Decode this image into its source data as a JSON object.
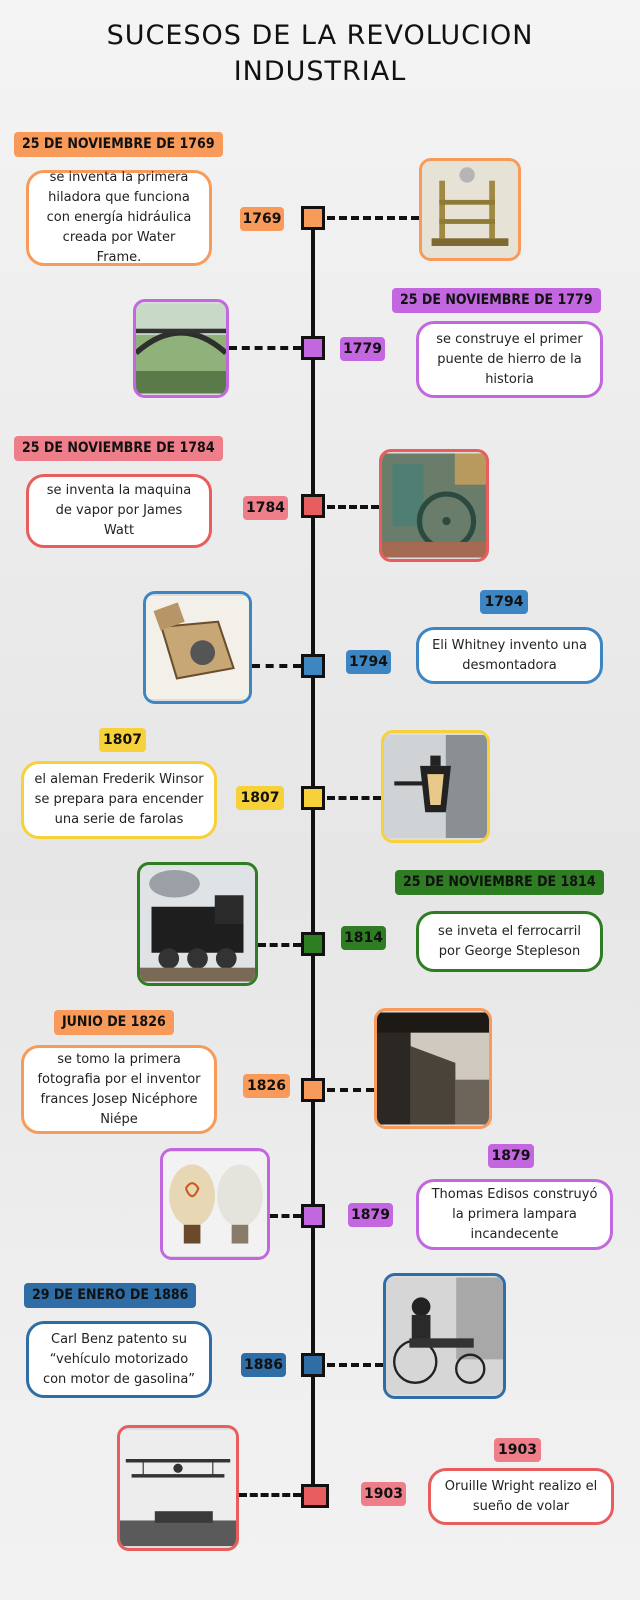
{
  "title": {
    "line1": "SUCESOS DE LA REVOLUCION",
    "line2": "INDUSTRIAL"
  },
  "colors": {
    "orange": "#f79a5a",
    "purple": "#c267e0",
    "red": "#e85d5d",
    "pink": "#ee7f8a",
    "blue": "#3d86c2",
    "yellow": "#f7d13a",
    "green": "#2e7d22",
    "navy": "#2f6da6"
  },
  "events": [
    {
      "year": "1769",
      "heading": "25 DE NOVIEMBRE DE 1769",
      "text": "se inventa la primera hiladora que funciona con energía hidráulica creada por Water Frame.",
      "icon": "water-frame-image"
    },
    {
      "year": "1779",
      "heading": "25 DE  NOVIEMBRE DE 1779",
      "text": "se construye el primer puente de hierro de la historia",
      "icon": "iron-bridge-image"
    },
    {
      "year": "1784",
      "heading": "25 DE NOVIEMBRE DE 1784",
      "text": "se inventa la maquina de vapor por James Watt",
      "icon": "steam-engine-image"
    },
    {
      "year": "1794",
      "heading": "1794",
      "text": "Eli Whitney invento una desmontadora",
      "icon": "cotton-gin-image"
    },
    {
      "year": "1807",
      "heading": "1807",
      "text": "el aleman Frederik Winsor se prepara para encender una serie de farolas",
      "icon": "street-lamp-image"
    },
    {
      "year": "1814",
      "heading": "25 DE NOVIEMBRE DE 1814",
      "text": "se inveta el ferrocarril por George Stepleson",
      "icon": "locomotive-image"
    },
    {
      "year": "1826",
      "heading": "JUNIO DE 1826",
      "text": "se tomo la primera fotografia por el inventor frances Josep Nicéphore Niépe",
      "icon": "first-photograph-image"
    },
    {
      "year": "1879",
      "heading": "1879",
      "text": "Thomas Edisos construyó la primera lampara incandecente",
      "icon": "light-bulb-image"
    },
    {
      "year": "1886",
      "heading": "29 DE ENERO DE 1886",
      "text": "Carl Benz patento su “vehículo motorizado con motor de gasolina”",
      "icon": "benz-motorwagen-image"
    },
    {
      "year": "1903",
      "heading": "1903",
      "text": "Oruille Wright realizo el sueño de volar",
      "icon": "wright-flyer-image"
    }
  ]
}
